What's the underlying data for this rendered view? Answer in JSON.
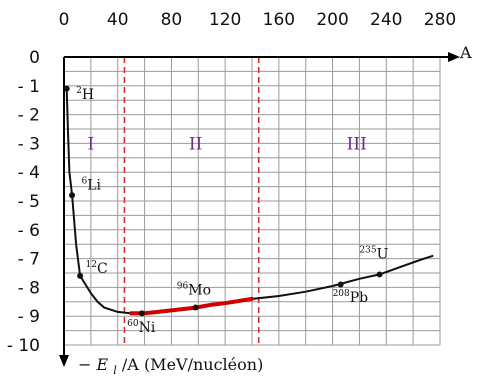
{
  "chart_data": {
    "type": "line",
    "xlim": [
      0,
      280
    ],
    "ylim": [
      -10,
      0
    ],
    "xticks": [
      0,
      40,
      80,
      120,
      160,
      200,
      240,
      280
    ],
    "yticks": [
      0,
      -1,
      -2,
      -3,
      -4,
      -5,
      -6,
      -7,
      -8,
      -9,
      -10
    ],
    "ytick_labels": [
      "0",
      "- 1",
      "- 2",
      "- 3",
      "- 4",
      "- 5",
      "- 6",
      "- 7",
      "- 8",
      "- 9",
      "- 10"
    ],
    "grid": true,
    "xlabel": "A",
    "ylabel": {
      "prefix": "−",
      "main": "E",
      "sub": "l",
      "rest": "/A (MeV/nucléon)"
    },
    "curve": {
      "x": [
        2,
        3,
        4,
        6,
        9,
        12,
        16,
        20,
        25,
        30,
        40,
        50,
        56,
        60,
        70,
        80,
        98,
        110,
        120,
        140,
        160,
        180,
        200,
        208,
        220,
        235,
        250,
        265,
        275
      ],
      "y": [
        -1.1,
        -2.6,
        -4.0,
        -4.8,
        -6.5,
        -7.6,
        -7.9,
        -8.2,
        -8.5,
        -8.7,
        -8.85,
        -8.9,
        -8.9,
        -8.9,
        -8.85,
        -8.8,
        -8.7,
        -8.6,
        -8.55,
        -8.4,
        -8.3,
        -8.15,
        -7.95,
        -7.85,
        -7.7,
        -7.55,
        -7.3,
        -7.05,
        -6.9
      ]
    },
    "highlight": {
      "from": 45,
      "to": 145,
      "color": "#d00000"
    },
    "boundaries": [
      45,
      145
    ],
    "boundary_color": "#d03030",
    "regions": [
      {
        "label": "I",
        "x": 20,
        "y": -3
      },
      {
        "label": "II",
        "x": 98,
        "y": -3
      },
      {
        "label": "III",
        "x": 218,
        "y": -3
      }
    ],
    "region_color": "#6a2a8a",
    "nuclides": [
      {
        "mass": "2",
        "symbol": "H",
        "x": 2,
        "y": -1.1,
        "lx": 9,
        "ly": -1.45
      },
      {
        "mass": "6",
        "symbol": "Li",
        "x": 6,
        "y": -4.8,
        "lx": 13,
        "ly": -4.6
      },
      {
        "mass": "12",
        "symbol": "C",
        "x": 12,
        "y": -7.6,
        "lx": 16,
        "ly": -7.5
      },
      {
        "mass": "60",
        "symbol": "Ni",
        "x": 58,
        "y": -8.9,
        "lx": 47,
        "ly": -9.55
      },
      {
        "mass": "96",
        "symbol": "Mo",
        "x": 98,
        "y": -8.7,
        "lx": 84,
        "ly": -8.25
      },
      {
        "mass": "208",
        "symbol": "Pb",
        "x": 206,
        "y": -7.9,
        "lx": 200,
        "ly": -8.5
      },
      {
        "mass": "235",
        "symbol": "U",
        "x": 235,
        "y": -7.55,
        "lx": 220,
        "ly": -7.0
      }
    ]
  }
}
